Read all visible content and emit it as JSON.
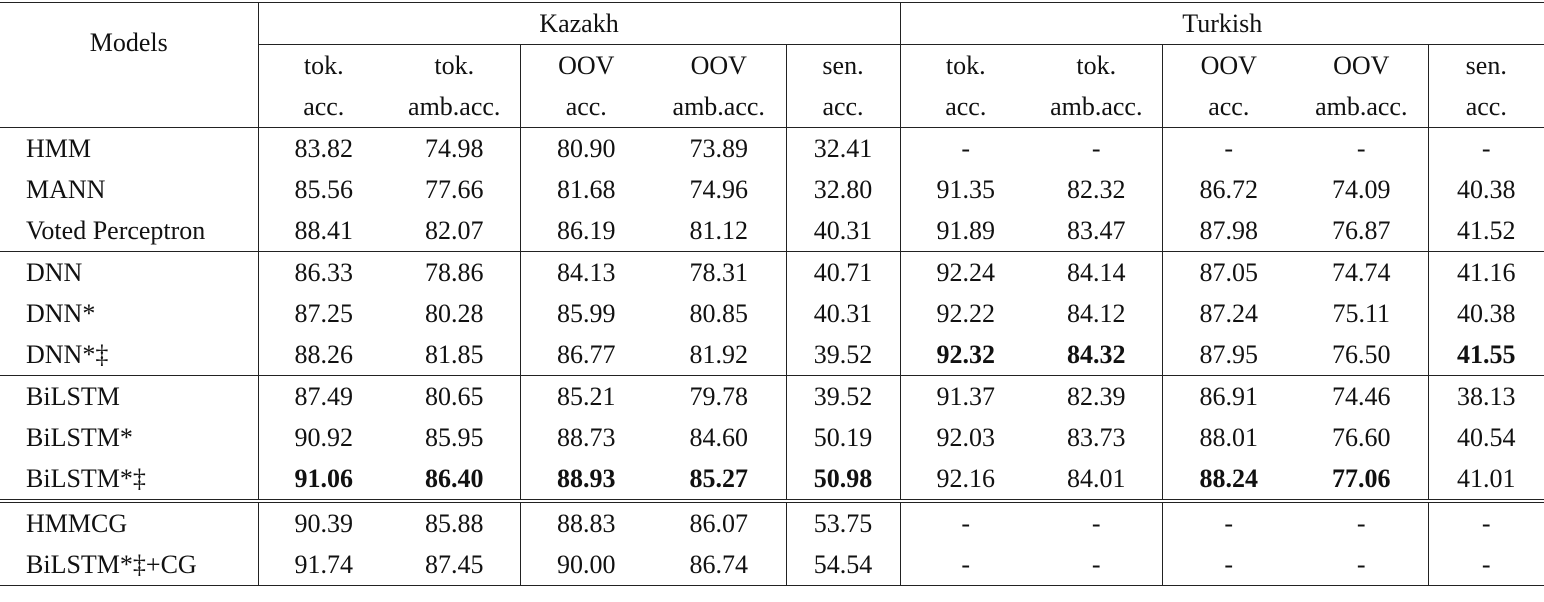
{
  "header": {
    "models": "Models",
    "languages": [
      "Kazakh",
      "Turkish"
    ],
    "metrics": [
      {
        "line1": "tok.",
        "line2": "acc."
      },
      {
        "line1": "tok.",
        "line2": "amb.acc."
      },
      {
        "line1": "OOV",
        "line2": "acc."
      },
      {
        "line1": "OOV",
        "line2": "amb.acc."
      },
      {
        "line1": "sen.",
        "line2": "acc."
      }
    ]
  },
  "groups": [
    [
      {
        "model": "HMM",
        "values": [
          "83.82",
          "74.98",
          "80.90",
          "73.89",
          "32.41",
          "-",
          "-",
          "-",
          "-",
          "-"
        ],
        "bold": []
      },
      {
        "model": "MANN",
        "values": [
          "85.56",
          "77.66",
          "81.68",
          "74.96",
          "32.80",
          "91.35",
          "82.32",
          "86.72",
          "74.09",
          "40.38"
        ],
        "bold": []
      },
      {
        "model": "Voted Perceptron",
        "values": [
          "88.41",
          "82.07",
          "86.19",
          "81.12",
          "40.31",
          "91.89",
          "83.47",
          "87.98",
          "76.87",
          "41.52"
        ],
        "bold": []
      }
    ],
    [
      {
        "model": "DNN",
        "values": [
          "86.33",
          "78.86",
          "84.13",
          "78.31",
          "40.71",
          "92.24",
          "84.14",
          "87.05",
          "74.74",
          "41.16"
        ],
        "bold": []
      },
      {
        "model": "DNN*",
        "values": [
          "87.25",
          "80.28",
          "85.99",
          "80.85",
          "40.31",
          "92.22",
          "84.12",
          "87.24",
          "75.11",
          "40.38"
        ],
        "bold": []
      },
      {
        "model": "DNN*‡",
        "values": [
          "88.26",
          "81.85",
          "86.77",
          "81.92",
          "39.52",
          "92.32",
          "84.32",
          "87.95",
          "76.50",
          "41.55"
        ],
        "bold": [
          5,
          6,
          9
        ]
      }
    ],
    [
      {
        "model": "BiLSTM",
        "values": [
          "87.49",
          "80.65",
          "85.21",
          "79.78",
          "39.52",
          "91.37",
          "82.39",
          "86.91",
          "74.46",
          "38.13"
        ],
        "bold": []
      },
      {
        "model": "BiLSTM*",
        "values": [
          "90.92",
          "85.95",
          "88.73",
          "84.60",
          "50.19",
          "92.03",
          "83.73",
          "88.01",
          "76.60",
          "40.54"
        ],
        "bold": []
      },
      {
        "model": "BiLSTM*‡",
        "values": [
          "91.06",
          "86.40",
          "88.93",
          "85.27",
          "50.98",
          "92.16",
          "84.01",
          "88.24",
          "77.06",
          "41.01"
        ],
        "bold": [
          0,
          1,
          2,
          3,
          4,
          7,
          8
        ]
      }
    ],
    [
      {
        "model": "HMMCG",
        "values": [
          "90.39",
          "85.88",
          "88.83",
          "86.07",
          "53.75",
          "-",
          "-",
          "-",
          "-",
          "-"
        ],
        "bold": []
      },
      {
        "model": "BiLSTM*‡+CG",
        "values": [
          "91.74",
          "87.45",
          "90.00",
          "86.74",
          "54.54",
          "-",
          "-",
          "-",
          "-",
          "-"
        ],
        "bold": []
      }
    ]
  ]
}
